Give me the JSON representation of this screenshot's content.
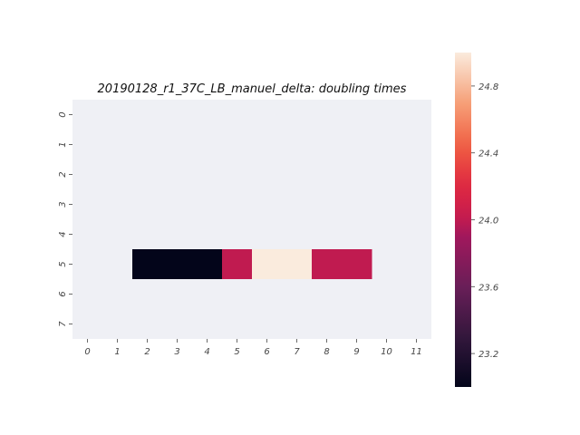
{
  "chart_data": {
    "type": "heatmap",
    "title": "20190128_r1_37C_LB_manuel_delta: doubling times",
    "xlabel": "",
    "ylabel": "",
    "x_tick_labels": [
      "0",
      "1",
      "2",
      "3",
      "4",
      "5",
      "6",
      "7",
      "8",
      "9",
      "10",
      "11"
    ],
    "y_tick_labels": [
      "0",
      "1",
      "2",
      "3",
      "4",
      "5",
      "6",
      "7"
    ],
    "missing_color": "#eff0f5",
    "cells": [
      {
        "row": 5,
        "col": 2,
        "value": 23.0
      },
      {
        "row": 5,
        "col": 3,
        "value": 23.0
      },
      {
        "row": 5,
        "col": 4,
        "value": 23.0
      },
      {
        "row": 5,
        "col": 5,
        "value": 24.0
      },
      {
        "row": 5,
        "col": 6,
        "value": 25.0
      },
      {
        "row": 5,
        "col": 7,
        "value": 25.0
      },
      {
        "row": 5,
        "col": 8,
        "value": 24.0
      },
      {
        "row": 5,
        "col": 9,
        "value": 24.0
      }
    ],
    "colorbar": {
      "vmin": 23.0,
      "vmax": 25.0,
      "ticks": [
        23.2,
        23.6,
        24.0,
        24.4,
        24.8
      ],
      "tick_labels": [
        "23.2",
        "23.6",
        "24.0",
        "24.4",
        "24.8"
      ],
      "colormap": "rocket"
    },
    "grid": false
  }
}
